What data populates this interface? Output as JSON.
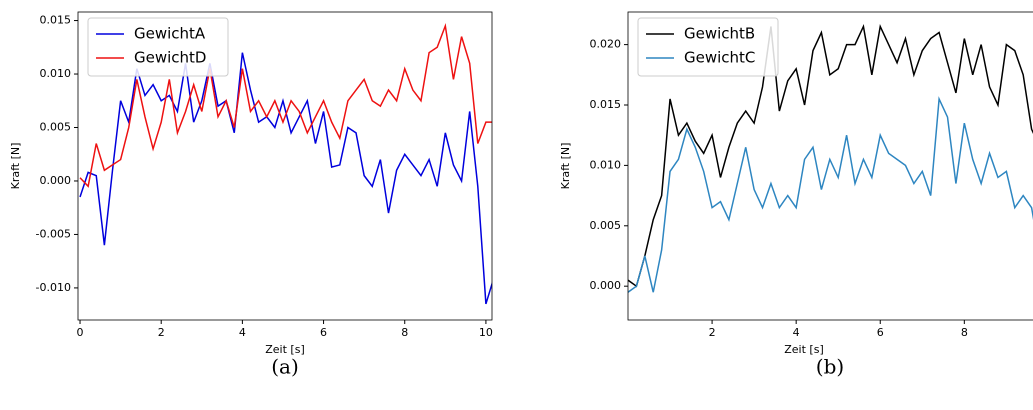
{
  "chart_data": [
    {
      "type": "line",
      "caption": "(a)",
      "xlabel": "Zeit [s]",
      "ylabel": "Kraft [N]",
      "x": [
        0,
        0.2,
        0.4,
        0.6,
        0.8,
        1.0,
        1.2,
        1.4,
        1.6,
        1.8,
        2.0,
        2.2,
        2.4,
        2.6,
        2.8,
        3.0,
        3.2,
        3.4,
        3.6,
        3.8,
        4.0,
        4.2,
        4.4,
        4.6,
        4.8,
        5.0,
        5.2,
        5.4,
        5.6,
        5.8,
        6.0,
        6.2,
        6.4,
        6.6,
        6.8,
        7.0,
        7.2,
        7.4,
        7.6,
        7.8,
        8.0,
        8.2,
        8.4,
        8.6,
        8.8,
        9.0,
        9.2,
        9.4,
        9.6,
        9.8,
        10.0,
        10.2
      ],
      "series": [
        {
          "name": "GewichtA",
          "color": "#0000dd",
          "values": [
            -0.0015,
            0.0008,
            0.0005,
            -0.006,
            0.001,
            0.0075,
            0.0055,
            0.0105,
            0.008,
            0.009,
            0.0075,
            0.008,
            0.0065,
            0.011,
            0.0055,
            0.0075,
            0.011,
            0.007,
            0.0075,
            0.0045,
            0.012,
            0.0085,
            0.0055,
            0.006,
            0.005,
            0.0075,
            0.0045,
            0.006,
            0.0075,
            0.0035,
            0.0065,
            0.0013,
            0.0015,
            0.005,
            0.0045,
            0.0005,
            -0.0005,
            0.002,
            -0.003,
            0.001,
            0.0025,
            0.0015,
            0.0005,
            0.002,
            -0.0005,
            0.0045,
            0.0015,
            0.0,
            0.0065,
            -0.0005,
            -0.0115,
            -0.009
          ]
        },
        {
          "name": "GewichtD",
          "color": "#ee1111",
          "values": [
            0.0003,
            -0.0005,
            0.0035,
            0.001,
            0.0015,
            0.002,
            0.005,
            0.0095,
            0.006,
            0.003,
            0.0055,
            0.0095,
            0.0045,
            0.0065,
            0.009,
            0.0065,
            0.0105,
            0.006,
            0.0075,
            0.005,
            0.0105,
            0.0065,
            0.0075,
            0.006,
            0.0075,
            0.0055,
            0.0075,
            0.0065,
            0.0045,
            0.006,
            0.0075,
            0.0055,
            0.004,
            0.0075,
            0.0085,
            0.0095,
            0.0075,
            0.007,
            0.0085,
            0.0075,
            0.0105,
            0.0085,
            0.0075,
            0.012,
            0.0125,
            0.0145,
            0.0095,
            0.0135,
            0.011,
            0.0035,
            0.0055,
            0.0055
          ]
        }
      ],
      "xlim": [
        -0.05,
        10.15
      ],
      "ylim": [
        -0.013,
        0.0158
      ],
      "xticks": [
        0,
        2,
        4,
        6,
        8,
        10
      ],
      "yticks": [
        {
          "value": -0.01,
          "label": "-0.010"
        },
        -0.005,
        {
          "value": 0,
          "label": "0.000"
        },
        0.005,
        {
          "value": 0.01,
          "label": "0.010"
        },
        0.015
      ],
      "legend": "upper-left"
    },
    {
      "type": "line",
      "caption": "(b)",
      "xlabel": "Zeit [s]",
      "ylabel": "Kraft [N]",
      "x": [
        0,
        0.2,
        0.4,
        0.6,
        0.8,
        1.0,
        1.2,
        1.4,
        1.6,
        1.8,
        2.0,
        2.2,
        2.4,
        2.6,
        2.8,
        3.0,
        3.2,
        3.4,
        3.6,
        3.8,
        4.0,
        4.2,
        4.4,
        4.6,
        4.8,
        5.0,
        5.2,
        5.4,
        5.6,
        5.8,
        6.0,
        6.2,
        6.4,
        6.6,
        6.8,
        7.0,
        7.2,
        7.4,
        7.6,
        7.8,
        8.0,
        8.2,
        8.4,
        8.6,
        8.8,
        9.0,
        9.2,
        9.4,
        9.6,
        9.8
      ],
      "series": [
        {
          "name": "GewichtB",
          "color": "#000000",
          "values": [
            0.0005,
            0.0,
            0.0025,
            0.0055,
            0.0075,
            0.0155,
            0.0125,
            0.0135,
            0.012,
            0.011,
            0.0125,
            0.009,
            0.0115,
            0.0135,
            0.0145,
            0.0135,
            0.0165,
            0.0215,
            0.0145,
            0.017,
            0.018,
            0.015,
            0.0195,
            0.021,
            0.0175,
            0.018,
            0.02,
            0.02,
            0.0215,
            0.0175,
            0.0215,
            0.02,
            0.0185,
            0.0205,
            0.0175,
            0.0195,
            0.0205,
            0.021,
            0.0185,
            0.016,
            0.0205,
            0.0175,
            0.02,
            0.0165,
            0.015,
            0.02,
            0.0195,
            0.0175,
            0.013,
            0.0115
          ]
        },
        {
          "name": "GewichtC",
          "color": "#2e86c1",
          "values": [
            -0.0005,
            0.0,
            0.0025,
            -0.0005,
            0.003,
            0.0095,
            0.0105,
            0.013,
            0.0115,
            0.0095,
            0.0065,
            0.007,
            0.0055,
            0.0085,
            0.0115,
            0.008,
            0.0065,
            0.0085,
            0.0065,
            0.0075,
            0.0065,
            0.0105,
            0.0115,
            0.008,
            0.0105,
            0.009,
            0.0125,
            0.0085,
            0.0105,
            0.009,
            0.0125,
            0.011,
            0.0105,
            0.01,
            0.0085,
            0.0095,
            0.0075,
            0.0155,
            0.014,
            0.0085,
            0.0135,
            0.0105,
            0.0085,
            0.011,
            0.009,
            0.0095,
            0.0065,
            0.0075,
            0.0065,
            0.0025
          ]
        }
      ],
      "xlim": [
        0,
        9.8
      ],
      "ylim": [
        -0.0028,
        0.0227
      ],
      "xticks": [
        2,
        4,
        6,
        8
      ],
      "yticks": [
        {
          "value": 0,
          "label": "0.000"
        },
        0.005,
        {
          "value": 0.01,
          "label": "0.010"
        },
        0.015,
        {
          "value": 0.02,
          "label": "0.020"
        }
      ],
      "legend": "upper-left"
    }
  ]
}
